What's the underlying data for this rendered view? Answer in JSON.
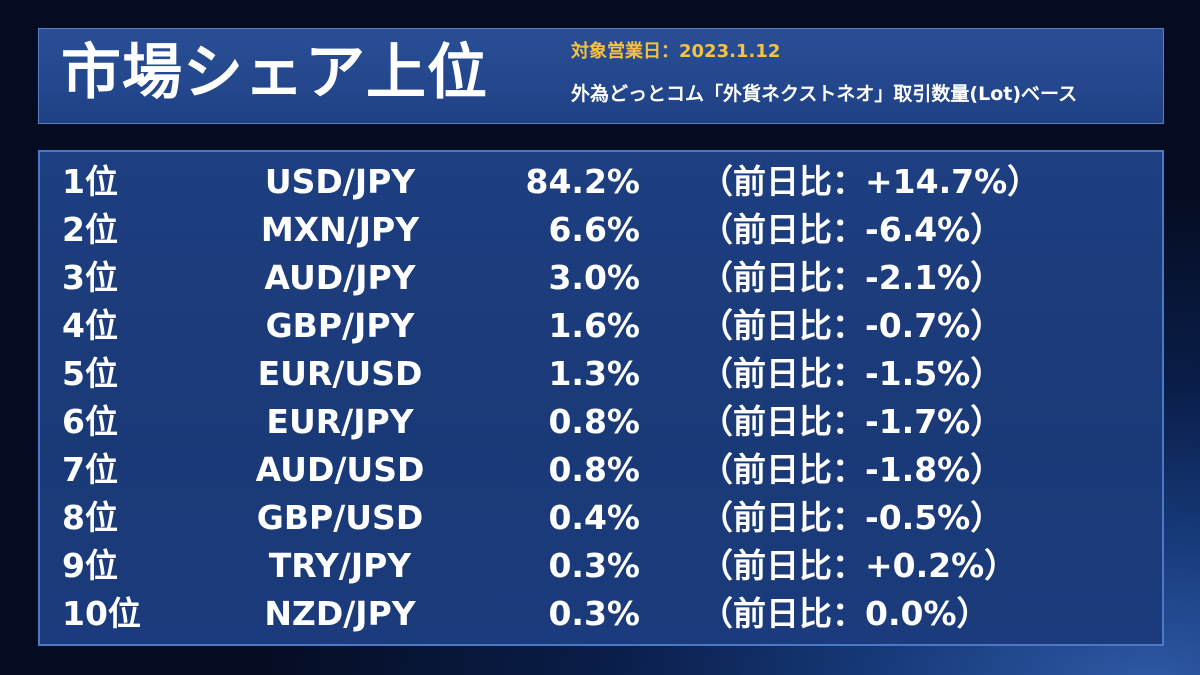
{
  "header": {
    "title": "市場シェア上位",
    "target_date": "対象営業日：2023.1.12",
    "basis": "外為どっとコム「外貨ネクストネオ」取引数量(Lot)ベース"
  },
  "rows": [
    {
      "rank": "1位",
      "pair": "USD/JPY",
      "share": "84.2%",
      "change": "（前日比：+14.7%）"
    },
    {
      "rank": "2位",
      "pair": "MXN/JPY",
      "share": "6.6%",
      "change": "（前日比：-6.4%）"
    },
    {
      "rank": "3位",
      "pair": "AUD/JPY",
      "share": "3.0%",
      "change": "（前日比：-2.1%）"
    },
    {
      "rank": "4位",
      "pair": "GBP/JPY",
      "share": "1.6%",
      "change": "（前日比：-0.7%）"
    },
    {
      "rank": "5位",
      "pair": "EUR/USD",
      "share": "1.3%",
      "change": "（前日比：-1.5%）"
    },
    {
      "rank": "6位",
      "pair": "EUR/JPY",
      "share": "0.8%",
      "change": "（前日比：-1.7%）"
    },
    {
      "rank": "7位",
      "pair": "AUD/USD",
      "share": "0.8%",
      "change": "（前日比：-1.8%）"
    },
    {
      "rank": "8位",
      "pair": "GBP/USD",
      "share": "0.4%",
      "change": "（前日比：-0.5%）"
    },
    {
      "rank": "9位",
      "pair": "TRY/JPY",
      "share": "0.3%",
      "change": "（前日比：+0.2%）"
    },
    {
      "rank": "10位",
      "pair": "NZD/JPY",
      "share": "0.3%",
      "change": "（前日比：0.0%）"
    }
  ],
  "colors": {
    "accent": "#f5c242",
    "panel": "#1f4186",
    "border": "#4c79c6"
  }
}
